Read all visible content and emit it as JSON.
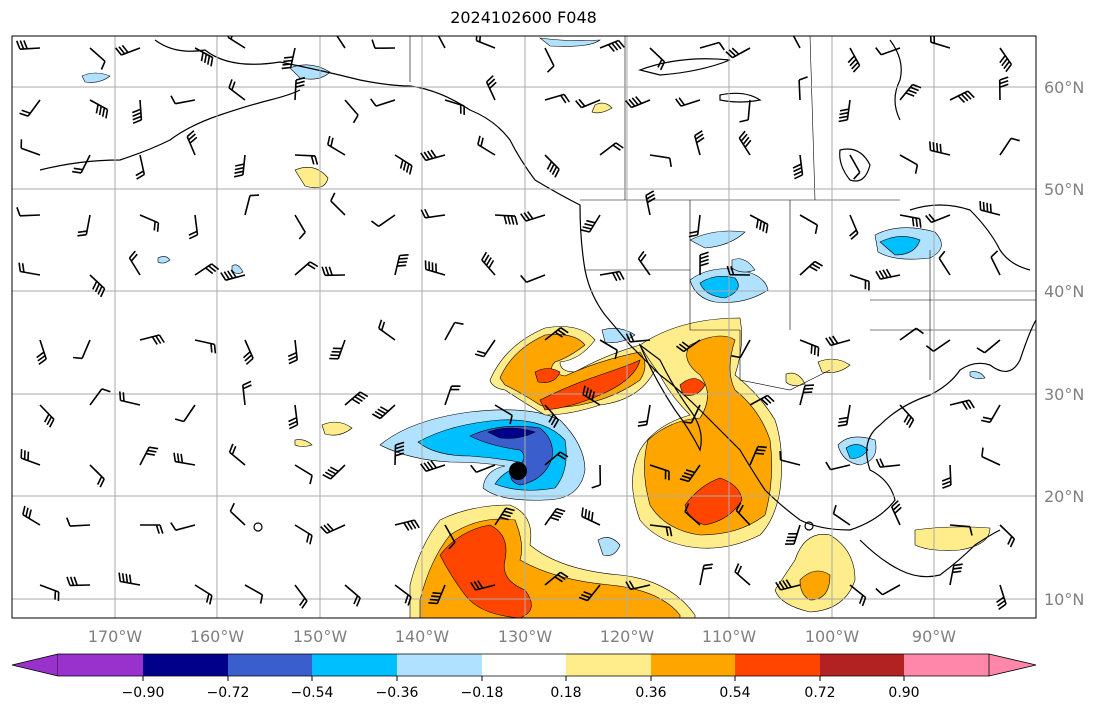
{
  "title": "2024102600 F048",
  "lon_labels": [
    "170°W",
    "160°W",
    "150°W",
    "140°W",
    "130°W",
    "120°W",
    "110°W",
    "100°W",
    "90°W"
  ],
  "lat_labels": [
    "60°N",
    "50°N",
    "40°N",
    "30°N",
    "20°N",
    "10°N"
  ],
  "colorbar": {
    "colors": [
      "#9932cc",
      "#00008b",
      "#3a5fcd",
      "#00bfff",
      "#b0e2ff",
      "#ffffff",
      "#ffec8b",
      "#ffa500",
      "#ff4500",
      "#b22222",
      "#ff88aa"
    ],
    "tick_labels": [
      "−0.90",
      "−0.72",
      "−0.54",
      "−0.36",
      "−0.18",
      "0.18",
      "0.36",
      "0.54",
      "0.72",
      "0.90"
    ]
  },
  "map_colors": {
    "land_line": "#000000",
    "grid": "#aaaaaa",
    "frame": "#000000"
  }
}
